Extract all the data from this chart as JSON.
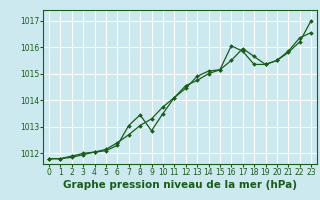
{
  "bg_color": "#cce9f0",
  "grid_color": "#ffffff",
  "line_color": "#1a5c1a",
  "marker_color": "#1a5c1a",
  "xlabel": "Graphe pression niveau de la mer (hPa)",
  "xlim": [
    -0.5,
    23.5
  ],
  "ylim": [
    1011.6,
    1017.4
  ],
  "yticks": [
    1012,
    1013,
    1014,
    1015,
    1016,
    1017
  ],
  "xticks": [
    0,
    1,
    2,
    3,
    4,
    5,
    6,
    7,
    8,
    9,
    10,
    11,
    12,
    13,
    14,
    15,
    16,
    17,
    18,
    19,
    20,
    21,
    22,
    23
  ],
  "series1_x": [
    0,
    1,
    2,
    3,
    4,
    5,
    6,
    7,
    8,
    9,
    10,
    11,
    12,
    13,
    14,
    15,
    16,
    17,
    18,
    19,
    20,
    21,
    22,
    23
  ],
  "series1_y": [
    1011.8,
    1011.8,
    1011.85,
    1011.95,
    1012.05,
    1012.15,
    1012.4,
    1012.7,
    1013.05,
    1013.3,
    1013.75,
    1014.1,
    1014.45,
    1014.9,
    1015.1,
    1015.15,
    1015.5,
    1015.95,
    1015.65,
    1015.35,
    1015.5,
    1015.8,
    1016.2,
    1017.0
  ],
  "series2_x": [
    0,
    1,
    2,
    3,
    4,
    5,
    6,
    7,
    8,
    9,
    10,
    11,
    12,
    13,
    14,
    15,
    16,
    17,
    18,
    19,
    20,
    21,
    22,
    23
  ],
  "series2_y": [
    1011.8,
    1011.8,
    1011.9,
    1012.0,
    1012.05,
    1012.1,
    1012.3,
    1013.05,
    1013.45,
    1012.85,
    1013.5,
    1014.1,
    1014.55,
    1014.75,
    1015.0,
    1015.15,
    1016.05,
    1015.85,
    1015.35,
    1015.35,
    1015.5,
    1015.85,
    1016.35,
    1016.55
  ],
  "tick_fontsize": 5.5,
  "label_fontsize": 7.5
}
